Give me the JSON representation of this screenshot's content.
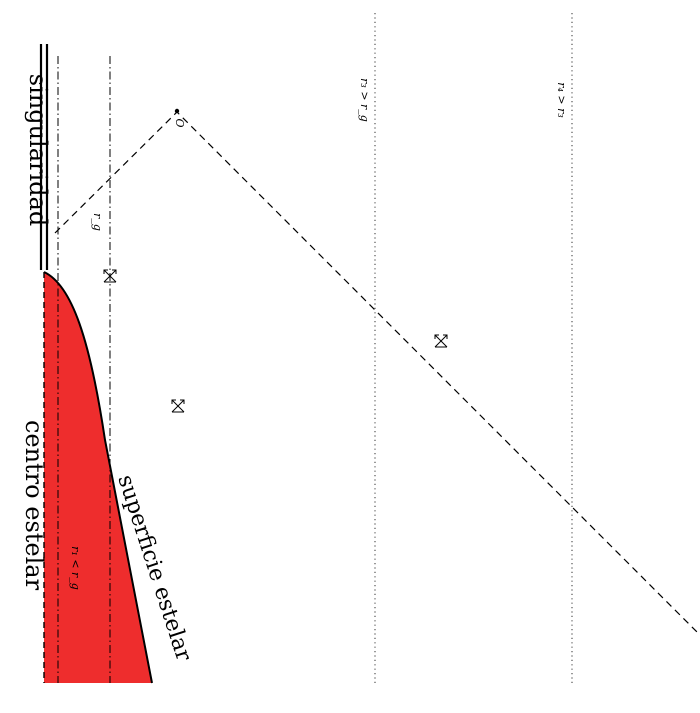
{
  "labels": {
    "singularity": "singularidad",
    "center": "centro estelar",
    "surface": "superficie estelar",
    "r1": "r₁ < r_g",
    "rg": "r_g",
    "r3": "r₃ > r_g",
    "r4": "r₄ > r₃",
    "origin": "O"
  },
  "colors": {
    "star_fill": "#ee2d2d",
    "ink": "#000000"
  },
  "icons": {
    "light_cone": "x-cross-with-arrows-icon"
  }
}
